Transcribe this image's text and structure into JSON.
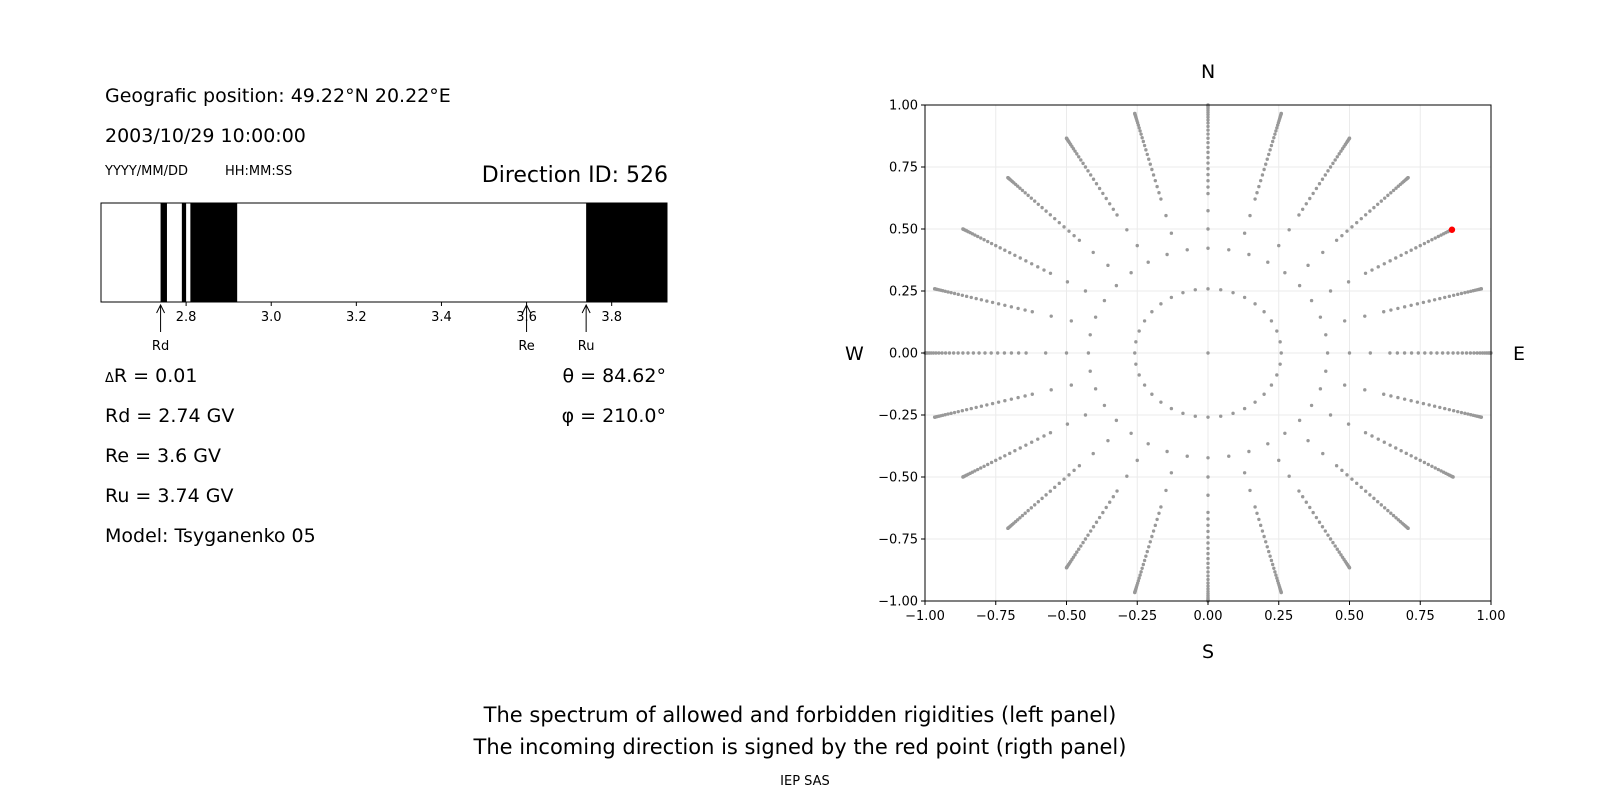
{
  "left_panel": {
    "position_label": "Geografic position: 49.22°N 20.22°E",
    "datetime": "2003/10/29 10:00:00",
    "date_format": "YYYY/MM/DD",
    "time_format": "HH:MM:SS",
    "direction_id": "Direction ID: 526",
    "delta_r": "R = 0.01",
    "delta_symbol": "Δ",
    "rd": "Rd = 2.74 GV",
    "re": "Re = 3.6 GV",
    "ru": "Ru = 3.74 GV",
    "model": "Model: Tsyganenko 05",
    "theta": "θ = 84.62°",
    "phi": "φ = 210.0°"
  },
  "right_panel": {
    "north": "N",
    "south": "S",
    "west": "W",
    "east": "E"
  },
  "footer": {
    "line1": "The spectrum of allowed and forbidden rigidities (left panel)",
    "line2": "The incoming direction is signed by the red point (rigth panel)",
    "credit": "IEP SAS"
  },
  "colors": {
    "forbidden": "#000000",
    "grid_point": "#999999",
    "marker": "#ff0000"
  },
  "chart_data": [
    {
      "type": "bar",
      "description_role": "rigidity spectrum",
      "xlim": [
        2.6,
        3.93
      ],
      "ticks": [
        2.8,
        3.0,
        3.2,
        3.4,
        3.6,
        3.8
      ],
      "tick_labels": [
        "2.8",
        "3.0",
        "3.2",
        "3.4",
        "3.6",
        "3.8"
      ],
      "forbidden_bands": [
        [
          2.74,
          2.755
        ],
        [
          2.79,
          2.8
        ],
        [
          2.81,
          2.92
        ],
        [
          3.74,
          3.93
        ]
      ],
      "markers": [
        {
          "label": "Rd",
          "value": 2.74
        },
        {
          "label": "Re",
          "value": 3.6
        },
        {
          "label": "Ru",
          "value": 3.74
        }
      ]
    },
    {
      "type": "scatter",
      "xlim": [
        -1.0,
        1.0
      ],
      "ylim": [
        -1.0,
        1.0
      ],
      "ticks": [
        -1.0,
        -0.75,
        -0.5,
        -0.25,
        0.0,
        0.25,
        0.5,
        0.75,
        1.0
      ],
      "x_tick_labels": [
        "−1.00",
        "−0.75",
        "−0.50",
        "−0.25",
        "0.00",
        "0.25",
        "0.50",
        "0.75",
        "1.00"
      ],
      "y_tick_labels": [
        "−1.00",
        "−0.75",
        "−0.50",
        "−0.25",
        "0.00",
        "0.25",
        "0.50",
        "0.75",
        "1.00"
      ],
      "grid": true,
      "grid_rings_deg": [
        0,
        15,
        25,
        30,
        35,
        40,
        42,
        44,
        46,
        48,
        50,
        52,
        54,
        56,
        58,
        60,
        62,
        64,
        66,
        68,
        70,
        72,
        74,
        76,
        78,
        80,
        82,
        84,
        86,
        88,
        90
      ],
      "azimuth_step_deg": 15,
      "inner_ring_step_deg": 10,
      "selected_point": {
        "theta_deg": 84.62,
        "phi_deg": 210.0,
        "x": 0.862,
        "y": 0.497
      }
    }
  ]
}
